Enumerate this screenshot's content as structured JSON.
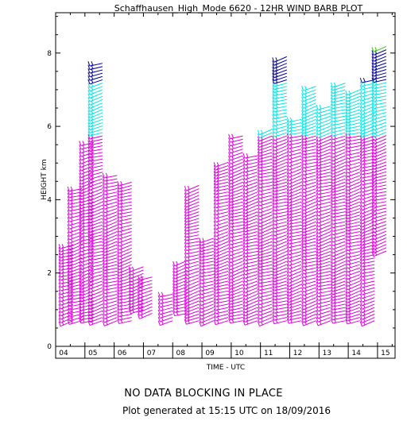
{
  "chart_data": {
    "type": "wind-barb",
    "title": "Schaffhausen_High_Mode 6620 - 12HR WIND BARB PLOT",
    "xlabel": "TIME - UTC",
    "ylabel": "HEIGHT km",
    "x_ticks": [
      "04",
      "05",
      "06",
      "07",
      "08",
      "09",
      "10",
      "11",
      "12",
      "13",
      "14",
      "15"
    ],
    "y_ticks": [
      "0",
      "2",
      "4",
      "6",
      "8"
    ],
    "xlim": [
      4.0,
      15.6
    ],
    "ylim": [
      0,
      9.1
    ],
    "legend": "none",
    "color_scale": [
      {
        "level": "low",
        "color": "#dd00dd"
      },
      {
        "level": "mid",
        "color": "#00e6e6"
      },
      {
        "level": "high",
        "color": "#000099"
      },
      {
        "level": "top",
        "color": "#33cc00"
      }
    ],
    "barbs": [
      [
        4.6,
        0.7,
        2.8
      ],
      [
        4.9,
        0.7,
        4.3
      ],
      [
        5.3,
        0.7,
        5.6
      ],
      [
        5.6,
        0.7,
        7.8
      ],
      [
        6.1,
        0.7,
        4.7
      ],
      [
        6.6,
        0.7,
        4.5
      ],
      [
        7.0,
        1.0,
        2.2
      ],
      [
        7.3,
        0.9,
        1.9
      ],
      [
        8.0,
        0.7,
        1.5
      ],
      [
        8.5,
        0.9,
        2.4
      ],
      [
        8.9,
        0.7,
        4.4
      ],
      [
        9.4,
        0.7,
        3.0
      ],
      [
        9.9,
        0.7,
        5.1
      ],
      [
        10.4,
        0.7,
        5.8
      ],
      [
        10.9,
        0.7,
        5.2
      ],
      [
        11.4,
        0.7,
        6.0
      ],
      [
        11.9,
        0.7,
        7.9
      ],
      [
        12.4,
        0.7,
        6.2
      ],
      [
        12.9,
        0.7,
        7.1
      ],
      [
        13.4,
        0.7,
        6.6
      ],
      [
        13.9,
        0.7,
        7.2
      ],
      [
        14.4,
        0.7,
        7.0
      ],
      [
        14.9,
        0.7,
        7.3
      ],
      [
        15.3,
        2.6,
        8.2
      ]
    ]
  },
  "footer": {
    "status": "NO DATA BLOCKING IN PLACE",
    "generated": "Plot generated at 15:15 UTC on 18/09/2016"
  }
}
